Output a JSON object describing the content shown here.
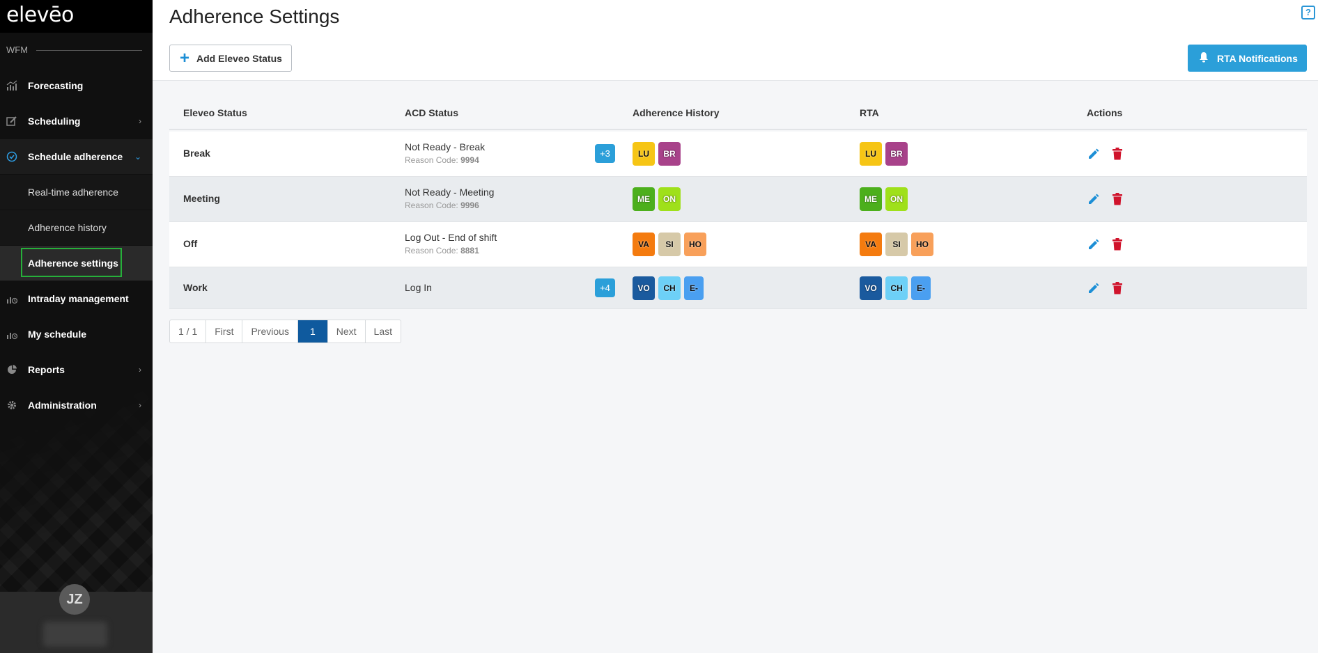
{
  "sidebar": {
    "logo": "elevēo",
    "section": "WFM",
    "nav": [
      {
        "label": "Forecasting",
        "icon": "chart-bar-icon"
      },
      {
        "label": "Scheduling",
        "icon": "schedule-edit-icon"
      },
      {
        "label": "Schedule adherence",
        "icon": "check-circle-icon"
      },
      {
        "label": "Intraday management",
        "icon": "intraday-icon"
      },
      {
        "label": "My schedule",
        "icon": "my-schedule-icon"
      },
      {
        "label": "Reports",
        "icon": "pie-chart-icon"
      },
      {
        "label": "Administration",
        "icon": "gear-icon"
      }
    ],
    "sub": [
      {
        "label": "Real-time adherence"
      },
      {
        "label": "Adherence history"
      },
      {
        "label": "Adherence settings"
      }
    ],
    "user_initials": "JZ"
  },
  "header": {
    "title": "Adherence Settings",
    "add_button": "Add Eleveo Status",
    "rta_button": "RTA Notifications"
  },
  "table": {
    "columns": [
      "Eleveo Status",
      "ACD Status",
      "Adherence History",
      "RTA",
      "Actions"
    ],
    "reason_label": "Reason Code:",
    "rows": [
      {
        "status": "Break",
        "acd": "Not Ready - Break",
        "code": "9994",
        "more": "+3",
        "history": [
          {
            "t": "LU",
            "c": "#f6c515"
          },
          {
            "t": "BR",
            "c": "#a8428a"
          }
        ],
        "rta": [
          {
            "t": "LU",
            "c": "#f6c515"
          },
          {
            "t": "BR",
            "c": "#a8428a"
          }
        ]
      },
      {
        "status": "Meeting",
        "acd": "Not Ready - Meeting",
        "code": "9996",
        "more": "",
        "history": [
          {
            "t": "ME",
            "c": "#4caf1c"
          },
          {
            "t": "ON",
            "c": "#9fe01a"
          }
        ],
        "rta": [
          {
            "t": "ME",
            "c": "#4caf1c"
          },
          {
            "t": "ON",
            "c": "#9fe01a"
          }
        ]
      },
      {
        "status": "Off",
        "acd": "Log Out - End of shift",
        "code": "8881",
        "more": "",
        "history": [
          {
            "t": "VA",
            "c": "#f47b0f"
          },
          {
            "t": "SI",
            "c": "#d6c9a8"
          },
          {
            "t": "HO",
            "c": "#f8a05a"
          }
        ],
        "rta": [
          {
            "t": "VA",
            "c": "#f47b0f"
          },
          {
            "t": "SI",
            "c": "#d6c9a8"
          },
          {
            "t": "HO",
            "c": "#f8a05a"
          }
        ]
      },
      {
        "status": "Work",
        "acd": "Log In",
        "code": "",
        "more": "+4",
        "history": [
          {
            "t": "VO",
            "c": "#1a5a9e"
          },
          {
            "t": "CH",
            "c": "#6dd0f7"
          },
          {
            "t": "E-",
            "c": "#4a9ff0"
          }
        ],
        "rta": [
          {
            "t": "VO",
            "c": "#1a5a9e"
          },
          {
            "t": "CH",
            "c": "#6dd0f7"
          },
          {
            "t": "E-",
            "c": "#4a9ff0"
          }
        ]
      }
    ]
  },
  "pager": {
    "info": "1 / 1",
    "first": "First",
    "previous": "Previous",
    "current": "1",
    "next": "Next",
    "last": "Last"
  },
  "colors": {
    "accent": "#2b9fd9",
    "page_current": "#0f5a9e",
    "delete": "#d0142c",
    "edit": "#1d8fd6",
    "highlight_box": "#26b03a"
  }
}
